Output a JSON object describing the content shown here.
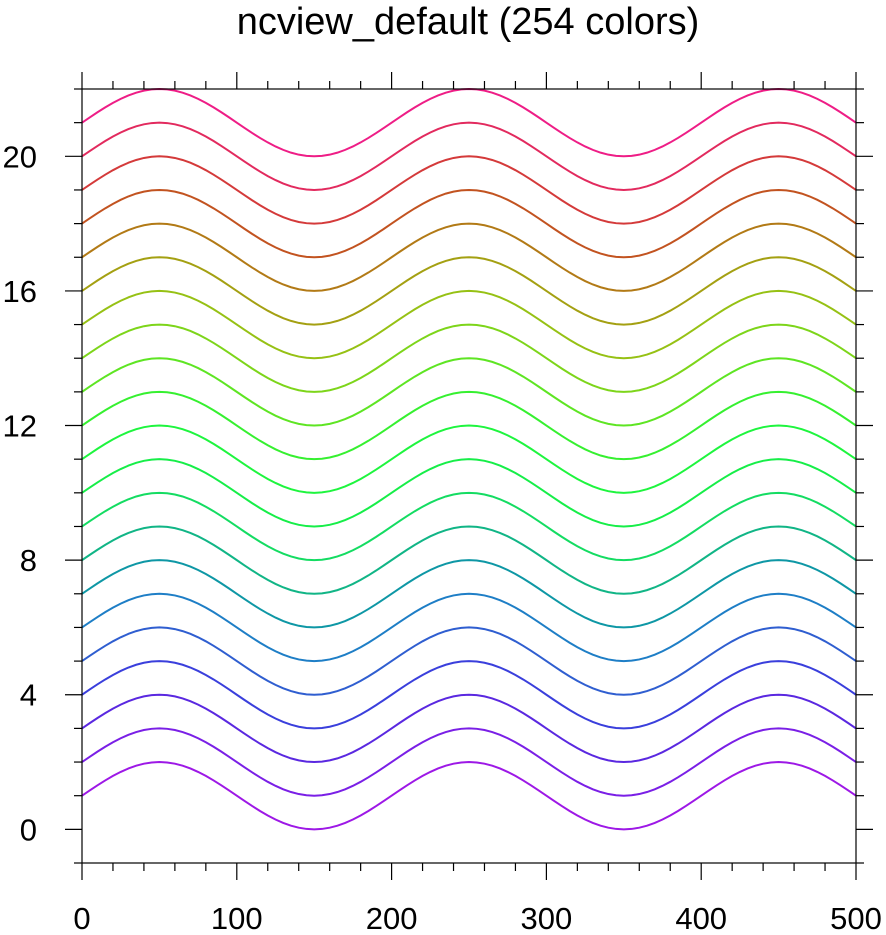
{
  "chart_data": {
    "type": "line",
    "title": "ncview_default (254 colors)",
    "xlabel": "",
    "ylabel": "",
    "xlim": [
      0,
      500
    ],
    "ylim": [
      -1,
      22
    ],
    "x_ticks": [
      0,
      100,
      200,
      300,
      400,
      500
    ],
    "y_ticks": [
      0,
      4,
      8,
      12,
      16,
      20
    ],
    "x_minor_step": 20,
    "y_minor_step": 1,
    "grid": false,
    "legend": "none",
    "curve": {
      "form": "offset + sin(2*pi*(x - 0)/200)",
      "period": 200,
      "amplitude": 1,
      "x_step": 5
    },
    "series": [
      {
        "offset": 1,
        "color": "#9d18e6"
      },
      {
        "offset": 2,
        "color": "#7a1fe6"
      },
      {
        "offset": 3,
        "color": "#5a28e0"
      },
      {
        "offset": 4,
        "color": "#3a3fdc"
      },
      {
        "offset": 5,
        "color": "#2f5ed0"
      },
      {
        "offset": 6,
        "color": "#1e7ec6"
      },
      {
        "offset": 7,
        "color": "#0e97a5"
      },
      {
        "offset": 8,
        "color": "#11b586"
      },
      {
        "offset": 9,
        "color": "#14dc62"
      },
      {
        "offset": 10,
        "color": "#16ee48"
      },
      {
        "offset": 11,
        "color": "#1ef53e"
      },
      {
        "offset": 12,
        "color": "#36f030"
      },
      {
        "offset": 13,
        "color": "#5ee523"
      },
      {
        "offset": 14,
        "color": "#7dd51a"
      },
      {
        "offset": 15,
        "color": "#96c114"
      },
      {
        "offset": 16,
        "color": "#a4a012"
      },
      {
        "offset": 17,
        "color": "#b27a16"
      },
      {
        "offset": 18,
        "color": "#c25320"
      },
      {
        "offset": 19,
        "color": "#d43a3a"
      },
      {
        "offset": 20,
        "color": "#e22a5e"
      },
      {
        "offset": 21,
        "color": "#ee1d86"
      }
    ]
  }
}
